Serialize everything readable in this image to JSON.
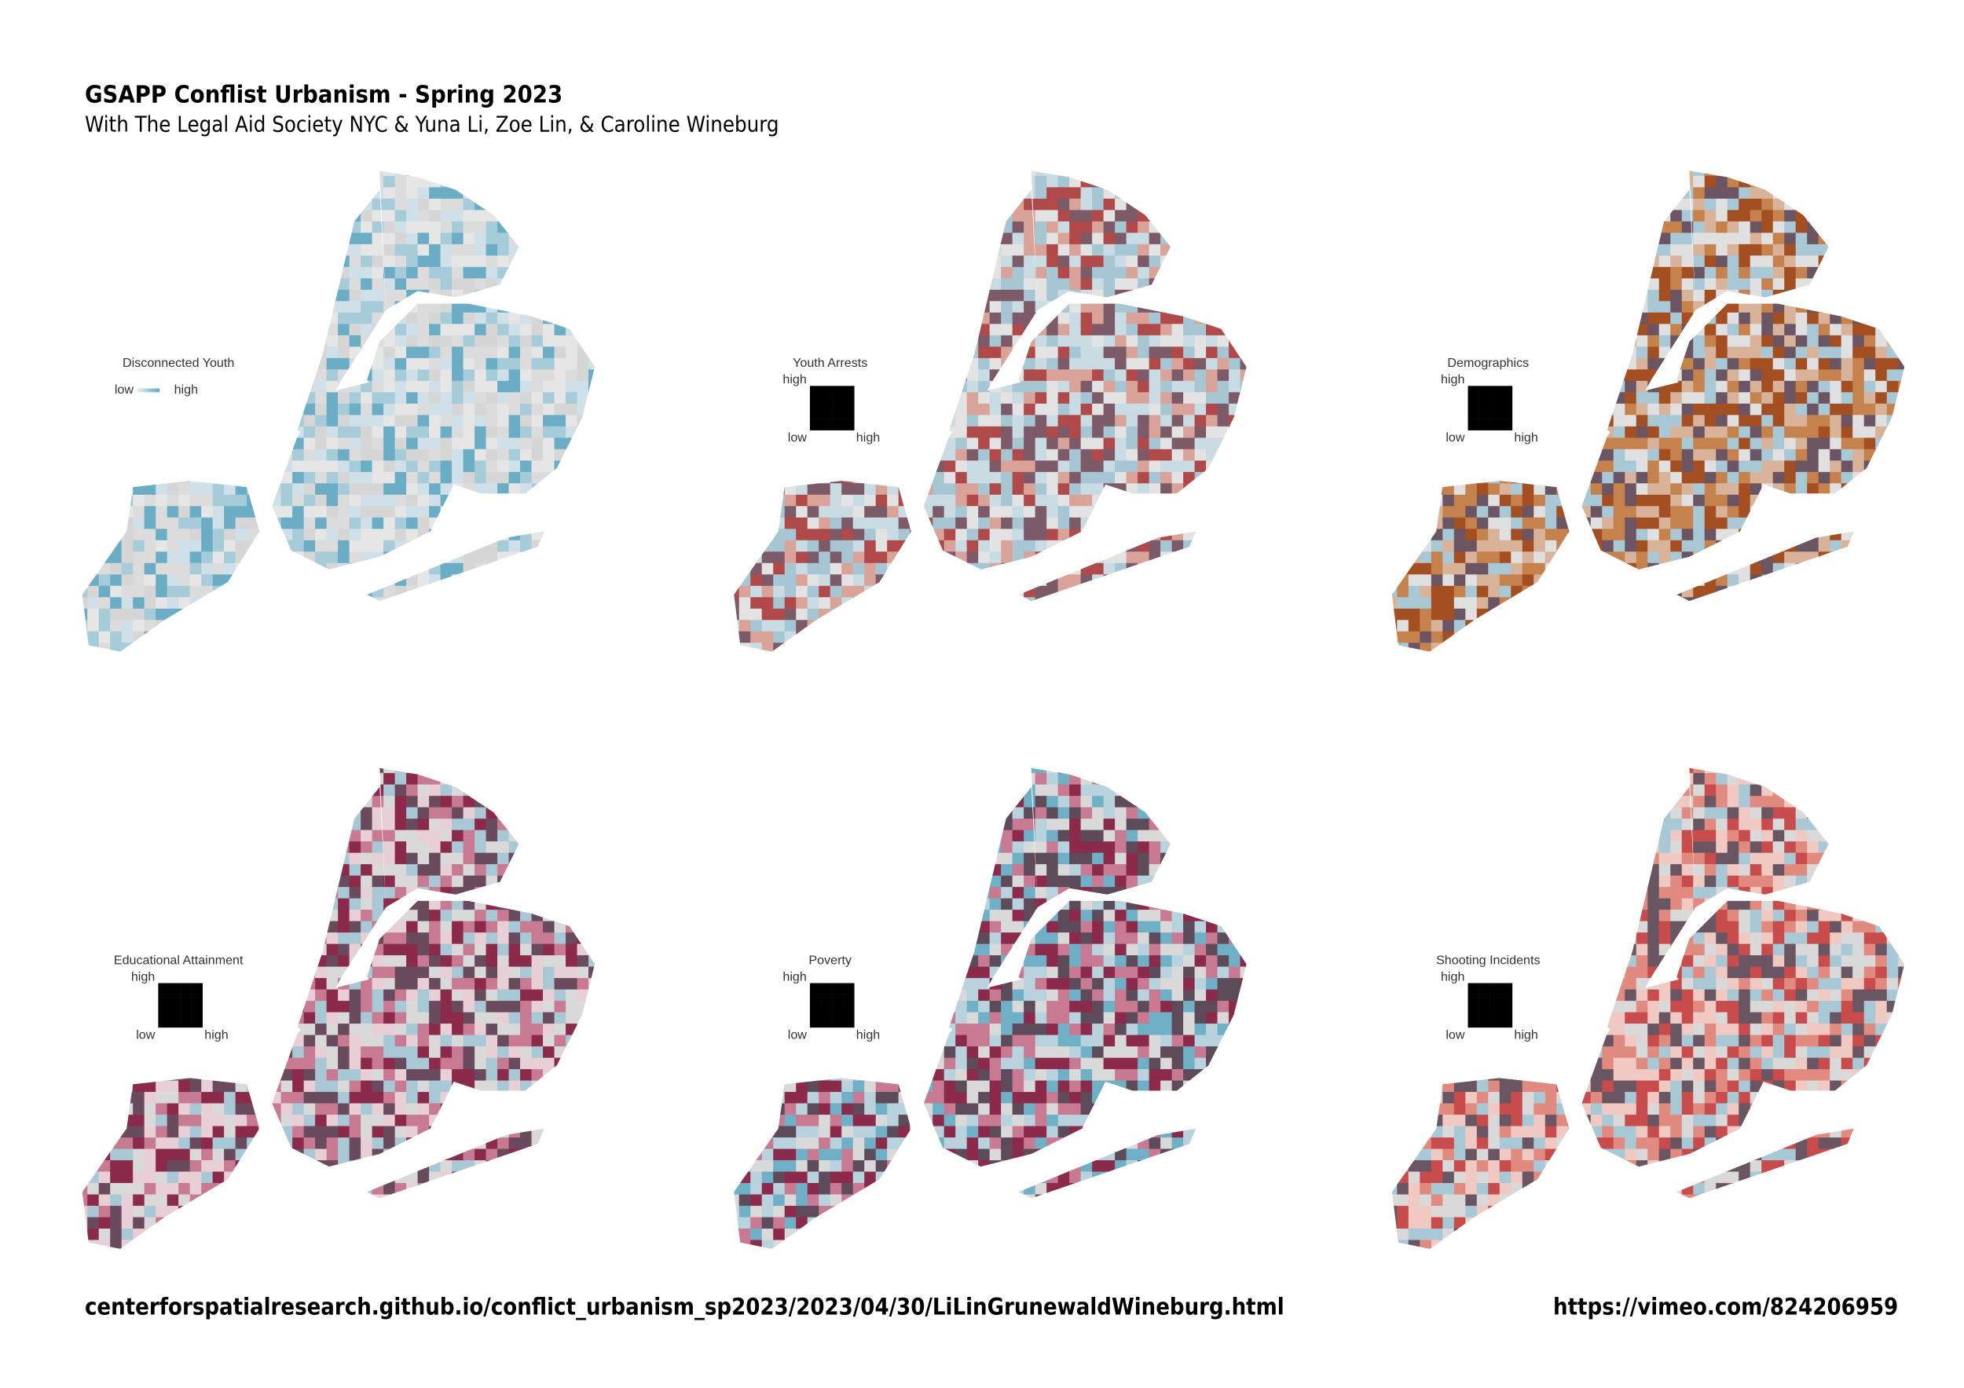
{
  "header": {
    "title": "GSAPP Conflist Urbanism - Spring 2023",
    "subtitle": "With The Legal Aid Society NYC & Yuna Li, Zoe Lin, & Caroline Wineburg"
  },
  "maps": [
    {
      "legend_title": "Disconnected Youth",
      "legend_labels": [
        "low",
        "high"
      ]
    },
    {
      "legend_title": "Youth Arrests",
      "legend_labels": [
        "high",
        "low",
        "high"
      ]
    },
    {
      "legend_title": "Demographics",
      "legend_labels": [
        "high",
        "low",
        "high"
      ]
    },
    {
      "legend_title": "Educational Attainment",
      "legend_labels": [
        "high",
        "low",
        "high"
      ]
    },
    {
      "legend_title": "Poverty",
      "legend_labels": [
        "high",
        "low",
        "high"
      ]
    },
    {
      "legend_title": "Shooting Incidents",
      "legend_labels": [
        "high",
        "low",
        "high"
      ]
    }
  ],
  "footer": {
    "url": "centerforspatialresearch.github.io/conflict_urbanism_sp2023/2023/04/30/LiLinGrunewaldWineburg.html",
    "video": "https://vimeo.com/824206959"
  }
}
